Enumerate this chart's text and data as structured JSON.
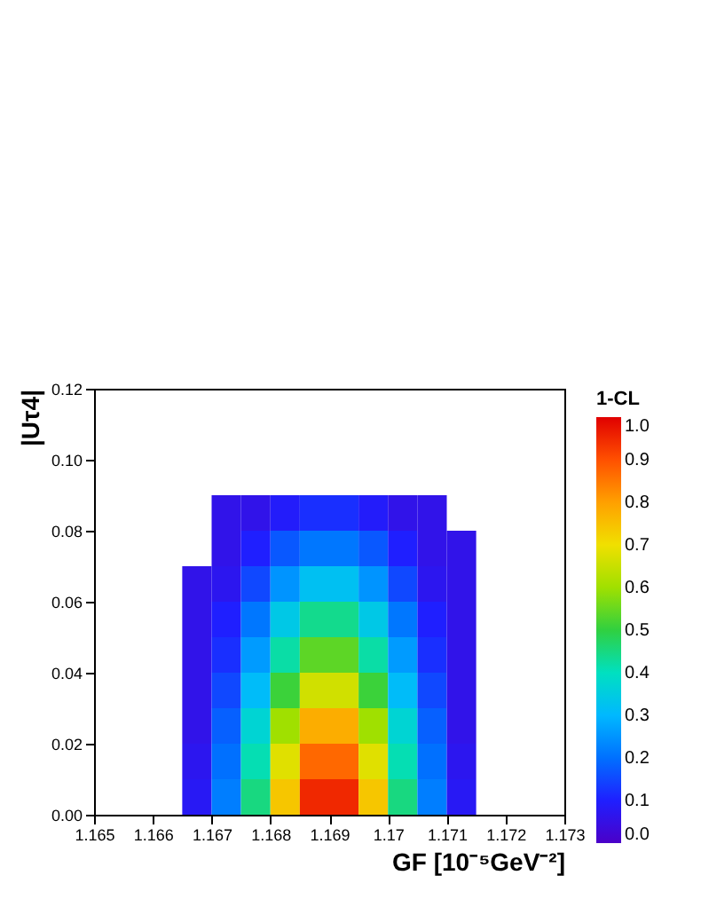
{
  "chart_data": {
    "type": "heatmap",
    "xlabel": "GF [10⁻⁵GeV⁻²]",
    "ylabel": "|Uτ4|",
    "clabel": "1-CL",
    "x": [
      1.16525,
      1.16575,
      1.16625,
      1.16675,
      1.16725,
      1.16775,
      1.16825,
      1.16875,
      1.16925,
      1.16975,
      1.17025,
      1.17075,
      1.17125,
      1.17175,
      1.17225,
      1.17275
    ],
    "y": [
      0.085,
      0.075,
      0.065,
      0.055,
      0.045,
      0.035,
      0.025,
      0.015,
      0.005
    ],
    "cells": [
      [
        null,
        null,
        null,
        null,
        0.06,
        0.06,
        0.09,
        0.12,
        0.12,
        0.09,
        0.06,
        0.06,
        null,
        null,
        null,
        null
      ],
      [
        null,
        null,
        null,
        null,
        0.06,
        0.1,
        0.17,
        0.21,
        0.21,
        0.17,
        0.1,
        0.06,
        0.06,
        null,
        null,
        null
      ],
      [
        null,
        null,
        null,
        0.06,
        0.07,
        0.15,
        0.25,
        0.32,
        0.32,
        0.25,
        0.15,
        0.07,
        0.06,
        null,
        null,
        null
      ],
      [
        null,
        null,
        null,
        0.06,
        0.1,
        0.21,
        0.34,
        0.44,
        0.44,
        0.34,
        0.21,
        0.1,
        0.06,
        null,
        null,
        null
      ],
      [
        null,
        null,
        null,
        0.06,
        0.12,
        0.26,
        0.42,
        0.54,
        0.54,
        0.42,
        0.26,
        0.12,
        0.06,
        null,
        null,
        null
      ],
      [
        null,
        null,
        null,
        0.06,
        0.15,
        0.31,
        0.51,
        0.66,
        0.66,
        0.51,
        0.31,
        0.15,
        0.06,
        null,
        null,
        null
      ],
      [
        null,
        null,
        null,
        0.06,
        0.18,
        0.37,
        0.6,
        0.78,
        0.78,
        0.6,
        0.37,
        0.18,
        0.06,
        null,
        null,
        null
      ],
      [
        null,
        null,
        null,
        0.07,
        0.2,
        0.41,
        0.68,
        0.87,
        0.87,
        0.68,
        0.41,
        0.2,
        0.07,
        null,
        null,
        null
      ],
      [
        null,
        null,
        null,
        0.08,
        0.22,
        0.45,
        0.74,
        0.95,
        0.95,
        0.74,
        0.45,
        0.22,
        0.08,
        null,
        null,
        null
      ]
    ],
    "xlim": [
      1.165,
      1.173
    ],
    "xticks": [
      1.165,
      1.166,
      1.167,
      1.168,
      1.169,
      1.17,
      1.171,
      1.172,
      1.173
    ],
    "ylim": [
      0,
      0.12
    ],
    "yticks": [
      {
        "value": 0,
        "label": "0.00"
      },
      {
        "value": 0.02,
        "label": "0.02"
      },
      {
        "value": 0.04,
        "label": "0.04"
      },
      {
        "value": 0.06,
        "label": "0.06"
      },
      {
        "value": 0.08,
        "label": "0.08"
      },
      {
        "value": 0.1,
        "label": "0.10"
      },
      {
        "value": 0.12,
        "label": "0.12"
      }
    ],
    "clim": [
      0,
      1
    ],
    "cticks": [
      {
        "value": 0,
        "label": "0.0"
      },
      0.1,
      0.2,
      0.3,
      0.4,
      0.5,
      0.6,
      0.7,
      0.8,
      0.9,
      {
        "value": 1,
        "label": "1.0"
      }
    ],
    "grid": false
  }
}
